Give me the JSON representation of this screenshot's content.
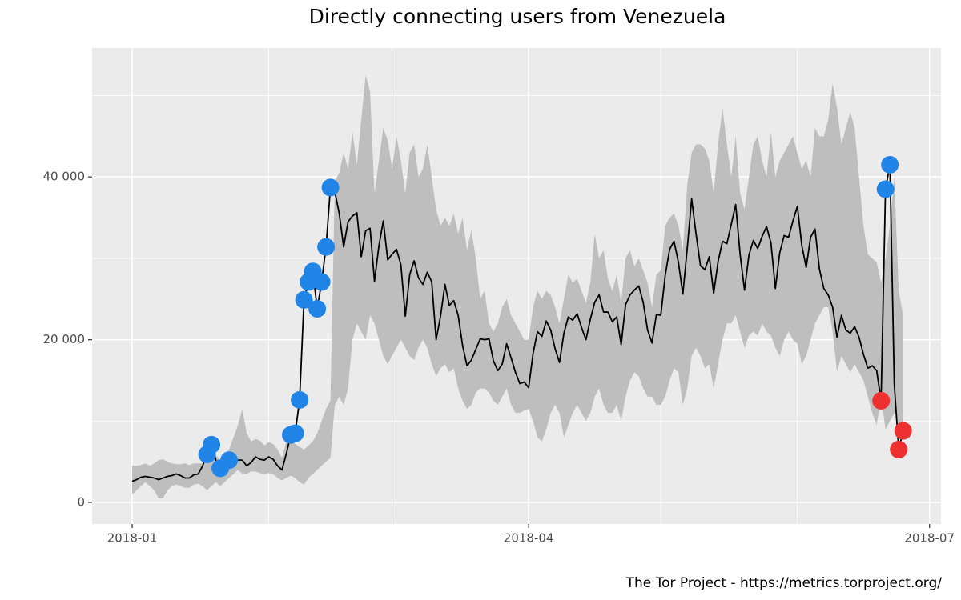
{
  "chart_data": {
    "type": "line",
    "title": "Directly connecting users from Venezuela",
    "caption": "The Tor Project - https://metrics.torproject.org/",
    "line_color": "#000000",
    "grid": true,
    "xlim": [
      -9.1,
      183.6
    ],
    "xticks": [
      {
        "value": 0,
        "label": "2018-01"
      },
      {
        "value": 90,
        "label": "2018-04"
      },
      {
        "value": 181,
        "label": "2018-07"
      }
    ],
    "xminorticks": [
      31,
      59,
      120,
      151
    ],
    "ylim": [
      -2650,
      55850
    ],
    "yticks": [
      0,
      {
        "value": 20000,
        "label": "20 000"
      },
      {
        "value": 40000,
        "label": "40 000"
      }
    ],
    "yminorticks": [
      10000,
      30000,
      50000
    ],
    "x": [
      0,
      1,
      2,
      3,
      4,
      5,
      6,
      7,
      8,
      9,
      10,
      11,
      12,
      13,
      14,
      15,
      16,
      17,
      18,
      19,
      20,
      21,
      22,
      23,
      24,
      25,
      26,
      27,
      28,
      29,
      30,
      31,
      32,
      33,
      34,
      35,
      36,
      37,
      38,
      39,
      40,
      41,
      42,
      43,
      44,
      45,
      46,
      47,
      48,
      49,
      50,
      51,
      52,
      53,
      54,
      55,
      56,
      57,
      58,
      59,
      60,
      61,
      62,
      63,
      64,
      65,
      66,
      67,
      68,
      69,
      70,
      71,
      72,
      73,
      74,
      75,
      76,
      77,
      78,
      79,
      80,
      81,
      82,
      83,
      84,
      85,
      86,
      87,
      88,
      89,
      90,
      91,
      92,
      93,
      94,
      95,
      96,
      97,
      98,
      99,
      100,
      101,
      102,
      103,
      104,
      105,
      106,
      107,
      108,
      109,
      110,
      111,
      112,
      113,
      114,
      115,
      116,
      117,
      118,
      119,
      120,
      121,
      122,
      123,
      124,
      125,
      126,
      127,
      128,
      129,
      130,
      131,
      132,
      133,
      134,
      135,
      136,
      137,
      138,
      139,
      140,
      141,
      142,
      143,
      144,
      145,
      146,
      147,
      148,
      149,
      150,
      151,
      152,
      153,
      154,
      155,
      156,
      157,
      158,
      159,
      160,
      161,
      162,
      163,
      164,
      165,
      166,
      167,
      168,
      169,
      170,
      171,
      172,
      173,
      174,
      175
    ],
    "values": [
      2600,
      2800,
      3100,
      3200,
      3100,
      3000,
      2800,
      3000,
      3200,
      3300,
      3500,
      3300,
      3000,
      3000,
      3400,
      3500,
      4500,
      5900,
      7100,
      5200,
      4200,
      4800,
      5200,
      5500,
      5200,
      5200,
      4500,
      4900,
      5600,
      5300,
      5200,
      5600,
      5300,
      4500,
      4000,
      6000,
      8300,
      8500,
      12600,
      24900,
      27100,
      28400,
      23800,
      27100,
      31400,
      38700,
      38200,
      35500,
      31400,
      34500,
      35200,
      35600,
      30200,
      33400,
      33700,
      27200,
      31500,
      34600,
      29800,
      30500,
      31100,
      29200,
      22900,
      28000,
      29700,
      27600,
      26800,
      28300,
      27100,
      20000,
      22900,
      26800,
      24200,
      24800,
      23000,
      19300,
      16800,
      17500,
      18800,
      20100,
      20000,
      20100,
      17400,
      16200,
      17000,
      19500,
      17800,
      16000,
      14600,
      14800,
      14100,
      18300,
      21000,
      20400,
      22300,
      21200,
      18900,
      17200,
      20800,
      22800,
      22400,
      23200,
      21500,
      20000,
      22500,
      24600,
      25500,
      23400,
      23400,
      22200,
      22800,
      19400,
      24300,
      25500,
      26100,
      26600,
      24600,
      21200,
      19600,
      23100,
      23000,
      27900,
      31100,
      32100,
      29500,
      25600,
      31200,
      37300,
      33000,
      29100,
      28600,
      30200,
      25700,
      29600,
      32100,
      31800,
      34200,
      36600,
      30500,
      26100,
      30400,
      32200,
      31200,
      32700,
      33900,
      31900,
      26300,
      30700,
      32800,
      32600,
      34600,
      36400,
      31600,
      28900,
      32600,
      33600,
      28700,
      26300,
      25500,
      24000,
      20300,
      23000,
      21200,
      20800,
      21600,
      20300,
      18200,
      16500,
      16800,
      16200,
      12500,
      38500,
      41500,
      14500,
      6500,
      8800
    ],
    "ribbon": {
      "color": "#bebebe",
      "upper": [
        4500,
        4500,
        4600,
        4800,
        4500,
        4800,
        5200,
        5300,
        5000,
        4800,
        4700,
        4700,
        4800,
        4600,
        4800,
        4800,
        4800,
        4800,
        5500,
        5800,
        5200,
        5500,
        6500,
        8000,
        9500,
        11500,
        8500,
        7500,
        7800,
        7600,
        7000,
        7400,
        7200,
        6500,
        5500,
        7500,
        7500,
        7200,
        6800,
        6500,
        7000,
        7500,
        8500,
        10000,
        11500,
        12500,
        39500,
        40500,
        43000,
        41000,
        45500,
        41500,
        47000,
        52500,
        50500,
        38000,
        42000,
        46000,
        44500,
        41000,
        45000,
        42000,
        38000,
        43000,
        44000,
        40000,
        41000,
        44000,
        40000,
        36000,
        34000,
        35000,
        34000,
        35500,
        33000,
        35000,
        31000,
        33500,
        30000,
        25000,
        26000,
        22000,
        21000,
        22000,
        24000,
        25000,
        23000,
        22000,
        21000,
        20000,
        20000,
        24000,
        26000,
        25000,
        26000,
        25500,
        24000,
        22000,
        25000,
        28000,
        27000,
        27500,
        26000,
        24500,
        27000,
        33000,
        30000,
        31000,
        27500,
        26000,
        28000,
        24500,
        30000,
        31000,
        29000,
        30000,
        28500,
        27000,
        24000,
        28000,
        28500,
        34000,
        35000,
        35500,
        34000,
        31000,
        39000,
        43000,
        44000,
        44000,
        43500,
        42000,
        38000,
        44000,
        48500,
        44000,
        40000,
        45000,
        38000,
        36000,
        40000,
        44000,
        45000,
        42000,
        40000,
        45500,
        40000,
        42000,
        43000,
        44000,
        45000,
        43000,
        41000,
        42000,
        40000,
        46000,
        45000,
        45000,
        47000,
        51500,
        48500,
        44000,
        46000,
        48000,
        46000,
        40000,
        34000,
        30500,
        30000,
        29500,
        27000,
        30000,
        34000,
        40000,
        26000,
        23000
      ],
      "lower": [
        1000,
        1500,
        2000,
        2500,
        2000,
        1500,
        500,
        500,
        1500,
        2000,
        2200,
        2000,
        1800,
        1800,
        2200,
        2300,
        2000,
        1500,
        2000,
        2500,
        2000,
        2500,
        3000,
        3500,
        4000,
        3500,
        3500,
        3800,
        3800,
        3600,
        3500,
        3600,
        3500,
        3000,
        2700,
        3000,
        3300,
        3000,
        2500,
        2200,
        3000,
        3500,
        4000,
        4500,
        5000,
        5500,
        12000,
        13000,
        12000,
        14000,
        20000,
        22000,
        21000,
        20000,
        23000,
        22000,
        20000,
        18000,
        17000,
        18000,
        19000,
        20000,
        19000,
        18000,
        17500,
        19000,
        20000,
        19000,
        17000,
        15500,
        16500,
        17000,
        16000,
        16500,
        14000,
        12500,
        11500,
        12000,
        13500,
        14000,
        14000,
        13500,
        12500,
        12000,
        13000,
        14000,
        12000,
        11000,
        11000,
        11300,
        11500,
        10000,
        8000,
        7500,
        9000,
        11000,
        12000,
        11000,
        8000,
        9500,
        11000,
        12000,
        11000,
        10000,
        11000,
        13000,
        14000,
        12000,
        11000,
        11000,
        12000,
        10000,
        13000,
        15000,
        16000,
        15500,
        14000,
        13000,
        13000,
        12000,
        12000,
        13000,
        15000,
        16500,
        16000,
        12000,
        14000,
        18000,
        19000,
        18000,
        16500,
        17000,
        14000,
        17000,
        20000,
        22000,
        22000,
        23000,
        21000,
        19000,
        20500,
        21000,
        20500,
        22000,
        21000,
        20500,
        19000,
        18000,
        20000,
        21000,
        20000,
        19500,
        17000,
        18000,
        20000,
        22000,
        23000,
        24000,
        24000,
        21000,
        16000,
        18000,
        17000,
        16000,
        17000,
        16000,
        15000,
        13000,
        11000,
        9500,
        13000,
        9000,
        10000,
        11000,
        9000,
        10000
      ]
    },
    "upturns": {
      "color": "#2185e8",
      "x": [
        17,
        18,
        20,
        22,
        36,
        37,
        38,
        39,
        40,
        41,
        42,
        43,
        44,
        45,
        171,
        172
      ],
      "values": [
        5900,
        7100,
        4200,
        5200,
        8300,
        8500,
        12600,
        24900,
        27100,
        28400,
        23800,
        27100,
        31400,
        38700,
        38500,
        41500
      ]
    },
    "downturns": {
      "color": "#ee3030",
      "x": [
        170,
        174,
        175
      ],
      "values": [
        12500,
        6500,
        8800
      ]
    }
  }
}
